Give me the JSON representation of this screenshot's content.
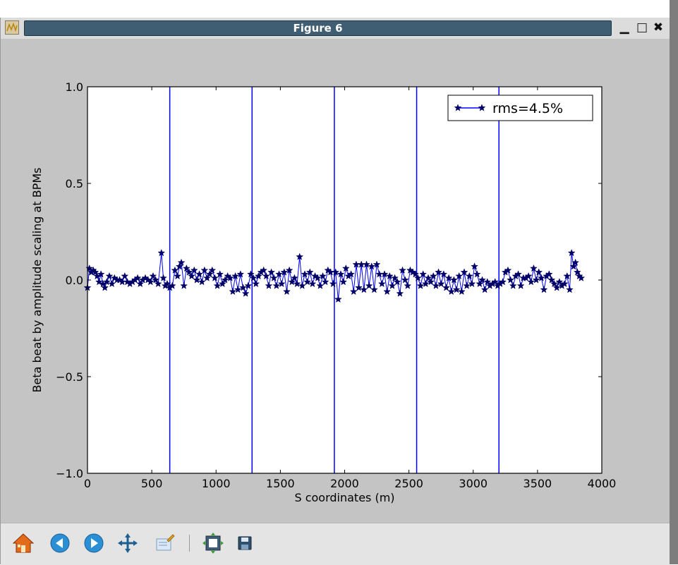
{
  "window": {
    "title": "Figure 6"
  },
  "window_controls": {
    "minimize": "▁",
    "maximize": "□",
    "close": "✖"
  },
  "toolbar": {
    "icons": [
      "home-icon",
      "back-icon",
      "forward-icon",
      "pan-icon",
      "zoom-icon",
      "configure-subplots-icon",
      "save-icon"
    ]
  },
  "chart_data": {
    "type": "line",
    "title": "",
    "xlabel": "S coordinates (m)",
    "ylabel": "Beta beat by amplitude scaling at BPMs",
    "xlim": [
      0,
      4000
    ],
    "ylim": [
      -1.0,
      1.0
    ],
    "xticks": [
      "0",
      "500",
      "1000",
      "1500",
      "2000",
      "2500",
      "3000",
      "3500",
      "4000"
    ],
    "yticks": [
      "1.0",
      "0.5",
      "0.0",
      "−0.5",
      "−1.0"
    ],
    "grid": false,
    "legend": {
      "location": "upper right",
      "entries": [
        "rms=4.5%"
      ]
    },
    "vlines": [
      640,
      1280,
      1920,
      2560,
      3200
    ],
    "series_color": "#0000ff",
    "series": [
      {
        "name": "rms=4.5%",
        "marker": "star",
        "x": [
          0,
          15,
          30,
          45,
          60,
          75,
          90,
          105,
          120,
          135,
          150,
          170,
          190,
          210,
          230,
          250,
          270,
          290,
          310,
          330,
          350,
          370,
          390,
          410,
          430,
          450,
          470,
          490,
          510,
          530,
          550,
          575,
          590,
          605,
          620,
          640,
          660,
          680,
          700,
          715,
          730,
          750,
          770,
          790,
          810,
          830,
          850,
          870,
          890,
          910,
          930,
          950,
          970,
          990,
          1010,
          1030,
          1050,
          1070,
          1090,
          1110,
          1130,
          1150,
          1170,
          1190,
          1210,
          1230,
          1250,
          1270,
          1290,
          1310,
          1330,
          1350,
          1370,
          1390,
          1410,
          1430,
          1450,
          1470,
          1490,
          1510,
          1530,
          1550,
          1570,
          1590,
          1610,
          1630,
          1650,
          1670,
          1690,
          1710,
          1730,
          1750,
          1770,
          1790,
          1810,
          1830,
          1850,
          1870,
          1890,
          1910,
          1930,
          1950,
          1970,
          1990,
          2010,
          2030,
          2050,
          2070,
          2090,
          2110,
          2130,
          2150,
          2170,
          2190,
          2210,
          2230,
          2250,
          2270,
          2290,
          2310,
          2330,
          2350,
          2370,
          2390,
          2410,
          2430,
          2450,
          2470,
          2490,
          2510,
          2530,
          2550,
          2570,
          2590,
          2610,
          2630,
          2650,
          2670,
          2690,
          2710,
          2730,
          2750,
          2770,
          2790,
          2810,
          2830,
          2850,
          2870,
          2890,
          2910,
          2930,
          2950,
          2970,
          2990,
          3010,
          3030,
          3050,
          3070,
          3090,
          3110,
          3130,
          3150,
          3170,
          3190,
          3210,
          3230,
          3250,
          3270,
          3290,
          3310,
          3330,
          3350,
          3370,
          3390,
          3410,
          3430,
          3450,
          3470,
          3490,
          3510,
          3530,
          3550,
          3570,
          3590,
          3610,
          3630,
          3650,
          3670,
          3690,
          3710,
          3730,
          3750,
          3765,
          3780,
          3795,
          3810,
          3825,
          3840
        ],
        "y": [
          -0.04,
          0.06,
          0.04,
          0.05,
          0.04,
          0.02,
          -0.01,
          0.03,
          -0.02,
          -0.04,
          -0.01,
          0.02,
          -0.02,
          0.01,
          0.0,
          0.0,
          -0.01,
          0.02,
          -0.01,
          -0.02,
          -0.01,
          0.0,
          0.01,
          -0.02,
          0.0,
          0.01,
          0.0,
          -0.01,
          0.02,
          0.0,
          -0.02,
          0.14,
          0.01,
          -0.03,
          -0.02,
          -0.04,
          -0.03,
          0.05,
          0.02,
          0.07,
          0.09,
          -0.03,
          0.06,
          0.04,
          0.02,
          0.05,
          0.0,
          0.03,
          -0.01,
          0.05,
          0.01,
          0.03,
          0.05,
          0.01,
          -0.03,
          0.03,
          -0.02,
          0.0,
          0.02,
          0.01,
          -0.06,
          0.02,
          -0.05,
          0.03,
          -0.04,
          -0.07,
          -0.03,
          0.03,
          0.01,
          -0.02,
          0.02,
          0.04,
          0.05,
          0.02,
          -0.03,
          0.04,
          0.01,
          -0.03,
          0.03,
          -0.02,
          0.04,
          -0.06,
          0.05,
          -0.01,
          0.01,
          -0.02,
          0.12,
          -0.03,
          0.03,
          -0.01,
          0.04,
          -0.02,
          0.02,
          0.01,
          -0.03,
          0.02,
          -0.01,
          0.05,
          0.04,
          -0.02,
          0.04,
          -0.1,
          0.03,
          -0.01,
          0.06,
          0.02,
          0.03,
          -0.06,
          0.08,
          -0.04,
          0.08,
          -0.05,
          0.08,
          -0.03,
          0.07,
          -0.05,
          0.08,
          0.03,
          -0.02,
          0.03,
          -0.06,
          0.02,
          -0.03,
          0.01,
          -0.01,
          -0.07,
          0.05,
          0.0,
          -0.03,
          0.05,
          0.04,
          0.03,
          0.01,
          -0.03,
          0.03,
          -0.02,
          0.01,
          -0.01,
          0.02,
          -0.03,
          0.04,
          -0.02,
          0.03,
          -0.04,
          0.01,
          -0.06,
          0.0,
          -0.05,
          0.02,
          -0.06,
          0.04,
          -0.03,
          0.02,
          -0.02,
          0.07,
          0.03,
          -0.02,
          0.0,
          -0.05,
          -0.01,
          -0.03,
          -0.02,
          -0.01,
          -0.03,
          -0.02,
          -0.01,
          0.04,
          0.05,
          0.0,
          -0.03,
          0.02,
          0.03,
          -0.03,
          0.01,
          0.01,
          0.02,
          -0.01,
          0.06,
          0.0,
          0.04,
          0.01,
          -0.05,
          0.02,
          0.03,
          0.0,
          -0.02,
          -0.04,
          -0.01,
          -0.03,
          -0.02,
          0.02,
          -0.05,
          0.14,
          0.07,
          0.09,
          0.04,
          0.02,
          0.01
        ]
      }
    ]
  }
}
